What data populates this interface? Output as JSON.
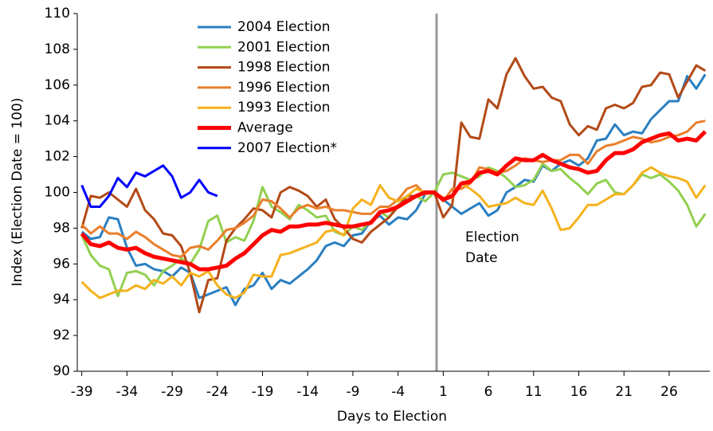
{
  "chart_data": {
    "type": "line",
    "ylabel": "Index (Election Date = 100)",
    "xlabel": "Days to Election",
    "annotation": [
      "Election",
      "Date"
    ],
    "x": [
      -39,
      -38,
      -37,
      -36,
      -35,
      -34,
      -33,
      -32,
      -31,
      -30,
      -29,
      -28,
      -27,
      -26,
      -25,
      -24,
      -23,
      -22,
      -21,
      -20,
      -19,
      -18,
      -17,
      -16,
      -15,
      -14,
      -13,
      -12,
      -11,
      -10,
      -9,
      -8,
      -7,
      -6,
      -5,
      -4,
      -3,
      -2,
      -1,
      0,
      1,
      2,
      3,
      4,
      5,
      6,
      7,
      8,
      9,
      10,
      11,
      12,
      13,
      14,
      15,
      16,
      17,
      18,
      19,
      20,
      21,
      22,
      23,
      24,
      25,
      26,
      27,
      28,
      29,
      30
    ],
    "xlim": [
      -39.5,
      30.5
    ],
    "xticks": [
      -39,
      -34,
      -29,
      -24,
      -19,
      -14,
      -9,
      -4,
      1,
      6,
      11,
      16,
      21,
      26
    ],
    "ylim": [
      90,
      110
    ],
    "yticks": [
      90,
      92,
      94,
      96,
      98,
      100,
      102,
      104,
      106,
      108,
      110
    ],
    "grid": false,
    "legend": "upper left",
    "series": [
      {
        "name": "2004 Election",
        "color": "#2a7fc1",
        "width": 3,
        "values": [
          97.8,
          97.4,
          97.5,
          98.6,
          98.5,
          96.9,
          95.9,
          96.0,
          95.7,
          95.6,
          95.3,
          95.8,
          95.5,
          94.1,
          94.3,
          94.5,
          94.7,
          93.7,
          94.6,
          94.8,
          95.5,
          94.6,
          95.1,
          94.9,
          95.3,
          95.7,
          96.2,
          97.0,
          97.2,
          97.0,
          97.6,
          97.7,
          98.4,
          98.7,
          98.2,
          98.6,
          98.5,
          99.0,
          99.9,
          100,
          99.6,
          99.2,
          98.8,
          99.1,
          99.4,
          98.7,
          99.0,
          100.0,
          100.3,
          100.7,
          100.6,
          101.5,
          101.2,
          101.6,
          101.8,
          101.5,
          101.9,
          102.9,
          103.0,
          103.8,
          103.2,
          103.4,
          103.3,
          104.1,
          104.6,
          105.1,
          105.1,
          106.5,
          105.8,
          106.6
        ]
      },
      {
        "name": "2001 Election",
        "color": "#92d050",
        "width": 3,
        "values": [
          97.6,
          96.5,
          95.9,
          95.7,
          94.2,
          95.5,
          95.6,
          95.4,
          94.8,
          95.6,
          95.9,
          96.3,
          96.0,
          96.8,
          98.4,
          98.7,
          97.2,
          97.5,
          97.3,
          98.4,
          100.3,
          99.2,
          98.9,
          98.5,
          99.3,
          99.0,
          98.6,
          98.7,
          97.8,
          97.6,
          98.1,
          97.9,
          98.4,
          98.9,
          98.6,
          99.3,
          99.6,
          99.8,
          99.5,
          100,
          101.0,
          101.1,
          100.9,
          100.7,
          100.9,
          101.4,
          101.2,
          100.8,
          100.3,
          100.4,
          100.7,
          101.6,
          101.2,
          101.3,
          100.8,
          100.4,
          99.9,
          100.5,
          100.7,
          100.0,
          99.9,
          100.4,
          101.0,
          100.8,
          101.0,
          100.6,
          100.1,
          99.3,
          98.1,
          98.8
        ]
      },
      {
        "name": "1998 Election",
        "color": "#b34a17",
        "width": 3,
        "values": [
          98.0,
          99.8,
          99.7,
          100.0,
          99.6,
          99.2,
          100.2,
          99.0,
          98.5,
          97.7,
          97.6,
          97.0,
          95.5,
          93.3,
          95.1,
          95.2,
          97.3,
          98.0,
          98.5,
          99.1,
          99.0,
          98.6,
          100.0,
          100.3,
          100.1,
          99.8,
          99.2,
          99.6,
          98.5,
          98.0,
          97.4,
          97.2,
          97.8,
          98.2,
          98.6,
          99.2,
          99.8,
          99.8,
          100.0,
          100,
          98.6,
          99.3,
          103.9,
          103.1,
          103.0,
          105.2,
          104.7,
          106.6,
          107.5,
          106.5,
          105.8,
          105.9,
          105.3,
          105.1,
          103.8,
          103.2,
          103.7,
          103.5,
          104.7,
          104.9,
          104.7,
          105.0,
          105.9,
          106.0,
          106.7,
          106.6,
          105.3,
          106.2,
          107.1,
          106.8
        ]
      },
      {
        "name": "1996 Election",
        "color": "#ea7f2c",
        "width": 3,
        "values": [
          98.2,
          97.7,
          98.1,
          97.7,
          97.7,
          97.4,
          97.8,
          97.5,
          97.1,
          96.8,
          96.5,
          96.4,
          96.9,
          97.0,
          96.8,
          97.3,
          97.9,
          98.0,
          98.3,
          98.7,
          99.6,
          99.5,
          99.1,
          98.6,
          99.1,
          99.3,
          99.1,
          99.2,
          99.0,
          99.0,
          98.9,
          98.8,
          98.8,
          99.2,
          99.2,
          99.6,
          100.2,
          100.4,
          99.9,
          100,
          99.5,
          100.2,
          100.2,
          100.5,
          101.4,
          101.3,
          101.1,
          101.2,
          101.5,
          101.9,
          101.8,
          101.7,
          101.8,
          101.8,
          102.1,
          102.1,
          101.6,
          102.3,
          102.6,
          102.7,
          102.9,
          103.1,
          103.0,
          102.8,
          102.9,
          103.1,
          103.2,
          103.4,
          103.9,
          104.0
        ]
      },
      {
        "name": "1993 Election",
        "color": "#f5b21e",
        "width": 3,
        "values": [
          95.0,
          94.5,
          94.1,
          94.3,
          94.5,
          94.5,
          94.8,
          94.6,
          95.1,
          94.9,
          95.3,
          94.8,
          95.5,
          95.3,
          95.6,
          94.8,
          94.3,
          94.1,
          94.4,
          95.4,
          95.3,
          95.3,
          96.5,
          96.6,
          96.8,
          97.0,
          97.2,
          97.8,
          97.9,
          97.6,
          99.1,
          99.6,
          99.3,
          100.4,
          99.7,
          99.5,
          99.8,
          100.2,
          100.0,
          100,
          99.7,
          99.7,
          100.5,
          100.2,
          99.8,
          99.2,
          99.3,
          99.4,
          99.7,
          99.4,
          99.3,
          100.1,
          99.1,
          97.9,
          98.0,
          98.6,
          99.3,
          99.3,
          99.6,
          99.9,
          99.9,
          100.4,
          101.1,
          101.4,
          101.1,
          100.9,
          100.8,
          100.6,
          99.7,
          100.4
        ]
      },
      {
        "name": "Average",
        "color": "#ff0000",
        "width": 5,
        "values": [
          97.7,
          97.1,
          97.0,
          97.2,
          96.9,
          96.8,
          96.9,
          96.6,
          96.4,
          96.3,
          96.2,
          96.1,
          96.0,
          95.7,
          95.7,
          95.8,
          95.9,
          96.3,
          96.6,
          97.1,
          97.6,
          97.9,
          97.8,
          98.1,
          98.1,
          98.2,
          98.2,
          98.3,
          98.2,
          98.1,
          98.1,
          98.2,
          98.3,
          98.9,
          99.0,
          99.2,
          99.5,
          99.8,
          100.0,
          100,
          99.6,
          99.8,
          100.5,
          100.6,
          101.1,
          101.2,
          101.0,
          101.5,
          101.9,
          101.8,
          101.8,
          102.1,
          101.8,
          101.6,
          101.4,
          101.3,
          101.1,
          101.2,
          101.8,
          102.2,
          102.2,
          102.4,
          102.8,
          103.0,
          103.2,
          103.3,
          102.9,
          103.0,
          102.9,
          103.4
        ]
      },
      {
        "name": "2007 Election*",
        "color": "#0000ff",
        "width": 3,
        "values": [
          100.4,
          99.2,
          99.2,
          99.8,
          100.8,
          100.3,
          101.1,
          100.9,
          101.2,
          101.5,
          100.9,
          99.7,
          100.0,
          100.7,
          100.0,
          99.8,
          null,
          null,
          null,
          null,
          null,
          null,
          null,
          null,
          null,
          null,
          null,
          null,
          null,
          null,
          null,
          null,
          null,
          null,
          null,
          null,
          null,
          null,
          null,
          null,
          null,
          null,
          null,
          null,
          null,
          null,
          null,
          null,
          null,
          null,
          null,
          null,
          null,
          null,
          null,
          null,
          null,
          null,
          null,
          null,
          null,
          null,
          null,
          null,
          null,
          null,
          null,
          null,
          null,
          null
        ]
      }
    ]
  }
}
